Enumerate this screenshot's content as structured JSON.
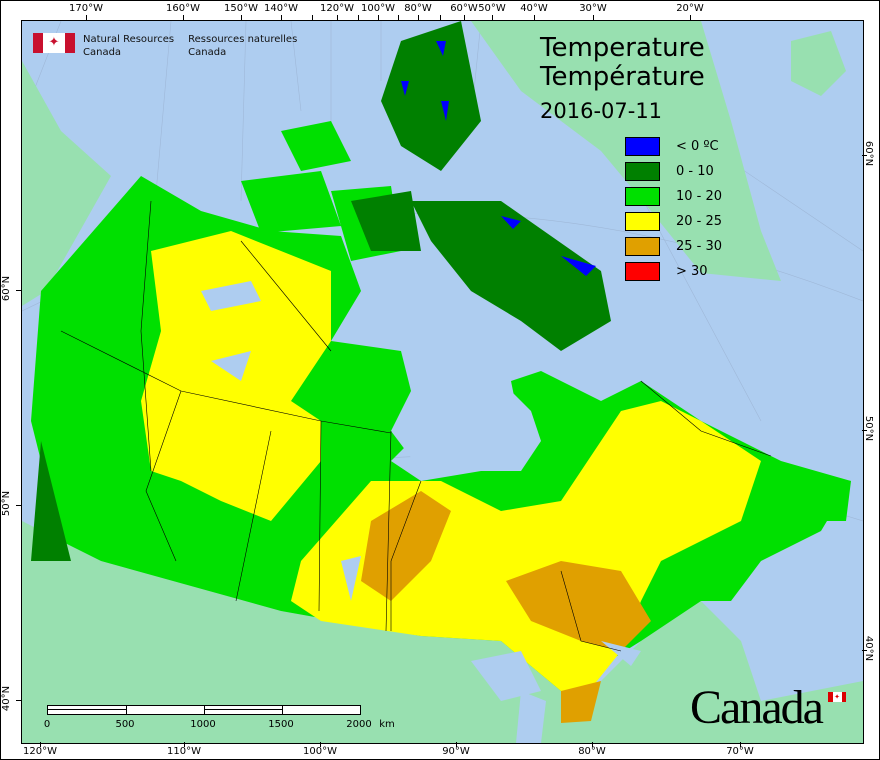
{
  "title": {
    "line1": "Temperature",
    "line2": "Température",
    "date": "2016-07-11"
  },
  "agency": {
    "en_line1": "Natural Resources",
    "en_line2": "Canada",
    "fr_line1": "Ressources naturelles",
    "fr_line2": "Canada",
    "flag_icon": "canada-flag-icon"
  },
  "legend": [
    {
      "label": "< 0 ºC",
      "color": "#0000ff"
    },
    {
      "label": "0 - 10",
      "color": "#008000"
    },
    {
      "label": "10 - 20",
      "color": "#00e000"
    },
    {
      "label": "20 - 25",
      "color": "#ffff00"
    },
    {
      "label": "25 - 30",
      "color": "#e0a000"
    },
    {
      "label": "> 30",
      "color": "#ff0000"
    }
  ],
  "axes": {
    "top": [
      "170°W",
      "160°W",
      "150°W",
      "140°W",
      "120°W",
      "100°W",
      "80°W",
      "60°W",
      "50°W",
      "40°W",
      "30°W",
      "20°W"
    ],
    "bottom": [
      "120°W",
      "110°W",
      "100°W",
      "90°W",
      "80°W",
      "70°W"
    ],
    "left": [
      "60°N",
      "50°N",
      "40°N"
    ],
    "right": [
      "60°N",
      "50°N",
      "40°N"
    ]
  },
  "scale": {
    "labels": [
      "0",
      "500",
      "1000",
      "1500",
      "2000"
    ],
    "unit": "km"
  },
  "wordmark": "Canada",
  "colors": {
    "ocean": "#aecdf0",
    "foreign_land": "#98e0b0"
  }
}
